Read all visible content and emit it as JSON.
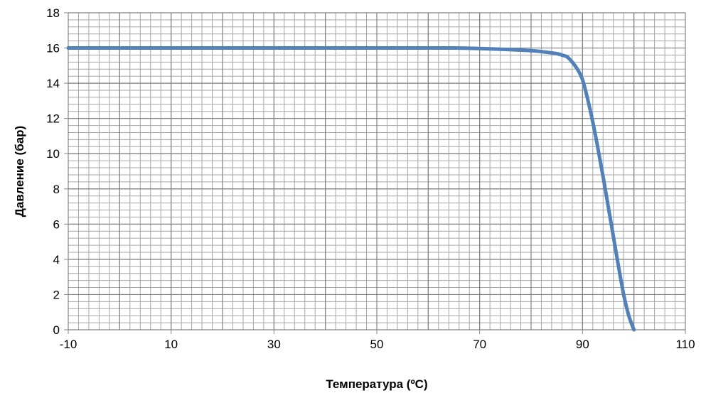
{
  "chart_data": {
    "type": "line",
    "xlabel": "Температура (ºC)",
    "ylabel": "Давление (бар)",
    "xlim": [
      -10,
      110
    ],
    "ylim": [
      0,
      18
    ],
    "x_tick_labels": [
      "-10",
      "10",
      "30",
      "50",
      "70",
      "90",
      "110"
    ],
    "y_tick_labels": [
      "0",
      "2",
      "4",
      "6",
      "8",
      "10",
      "12",
      "14",
      "16",
      "18"
    ],
    "grid": true,
    "legend": "none",
    "series": [
      {
        "color": "#4f81bd",
        "x": [
          -10,
          0,
          10,
          20,
          30,
          40,
          50,
          60,
          65,
          70,
          75,
          80,
          83,
          85,
          86,
          87,
          88,
          89,
          90,
          91,
          92,
          93,
          94,
          95,
          96,
          97,
          98,
          99,
          100
        ],
        "y": [
          16,
          16,
          16,
          16,
          16,
          16,
          16,
          16,
          16,
          15.97,
          15.92,
          15.85,
          15.76,
          15.68,
          15.6,
          15.5,
          15.2,
          14.8,
          14.2,
          13.1,
          11.8,
          10.3,
          8.7,
          7,
          5.3,
          3.6,
          2,
          0.8,
          0
        ]
      }
    ]
  }
}
